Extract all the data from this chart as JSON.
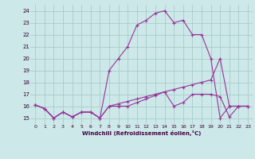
{
  "xlabel": "Windchill (Refroidissement éolien,°C)",
  "bg_color": "#cce8e8",
  "grid_color": "#aacccc",
  "line_color": "#993399",
  "ylim": [
    14.5,
    24.5
  ],
  "xlim": [
    -0.5,
    23.5
  ],
  "yticks": [
    15,
    16,
    17,
    18,
    19,
    20,
    21,
    22,
    23,
    24
  ],
  "xticks": [
    0,
    1,
    2,
    3,
    4,
    5,
    6,
    7,
    8,
    9,
    10,
    11,
    12,
    13,
    14,
    15,
    16,
    17,
    18,
    19,
    20,
    21,
    22,
    23
  ],
  "series1_x": [
    0,
    1,
    2,
    3,
    4,
    5,
    6,
    7,
    8,
    9,
    10,
    11,
    12,
    13,
    14,
    15,
    16,
    17,
    18,
    19,
    20,
    21,
    22,
    23
  ],
  "series1_y": [
    16.1,
    15.8,
    15.0,
    15.5,
    15.1,
    15.5,
    15.5,
    15.0,
    16.0,
    16.2,
    16.4,
    16.6,
    16.8,
    17.0,
    17.2,
    17.4,
    17.6,
    17.8,
    18.0,
    18.2,
    20.0,
    16.0,
    16.0,
    16.0
  ],
  "series2_x": [
    0,
    1,
    2,
    3,
    4,
    5,
    6,
    7,
    8,
    9,
    10,
    11,
    12,
    13,
    14,
    15,
    16,
    17,
    18,
    19,
    20,
    21,
    22,
    23
  ],
  "series2_y": [
    16.1,
    15.8,
    15.0,
    15.5,
    15.1,
    15.5,
    15.5,
    15.0,
    19.0,
    20.0,
    21.0,
    22.8,
    23.2,
    23.8,
    24.0,
    23.0,
    23.2,
    22.0,
    22.0,
    20.0,
    15.0,
    16.0,
    16.0,
    16.0
  ],
  "series3_x": [
    0,
    1,
    2,
    3,
    4,
    5,
    6,
    7,
    8,
    9,
    10,
    11,
    12,
    13,
    14,
    15,
    16,
    17,
    18,
    19,
    20,
    21,
    22,
    23
  ],
  "series3_y": [
    16.1,
    15.8,
    15.0,
    15.5,
    15.1,
    15.5,
    15.5,
    15.0,
    16.0,
    16.0,
    16.0,
    16.3,
    16.6,
    16.9,
    17.2,
    16.0,
    16.3,
    17.0,
    17.0,
    17.0,
    16.8,
    15.1,
    16.0,
    16.0
  ]
}
